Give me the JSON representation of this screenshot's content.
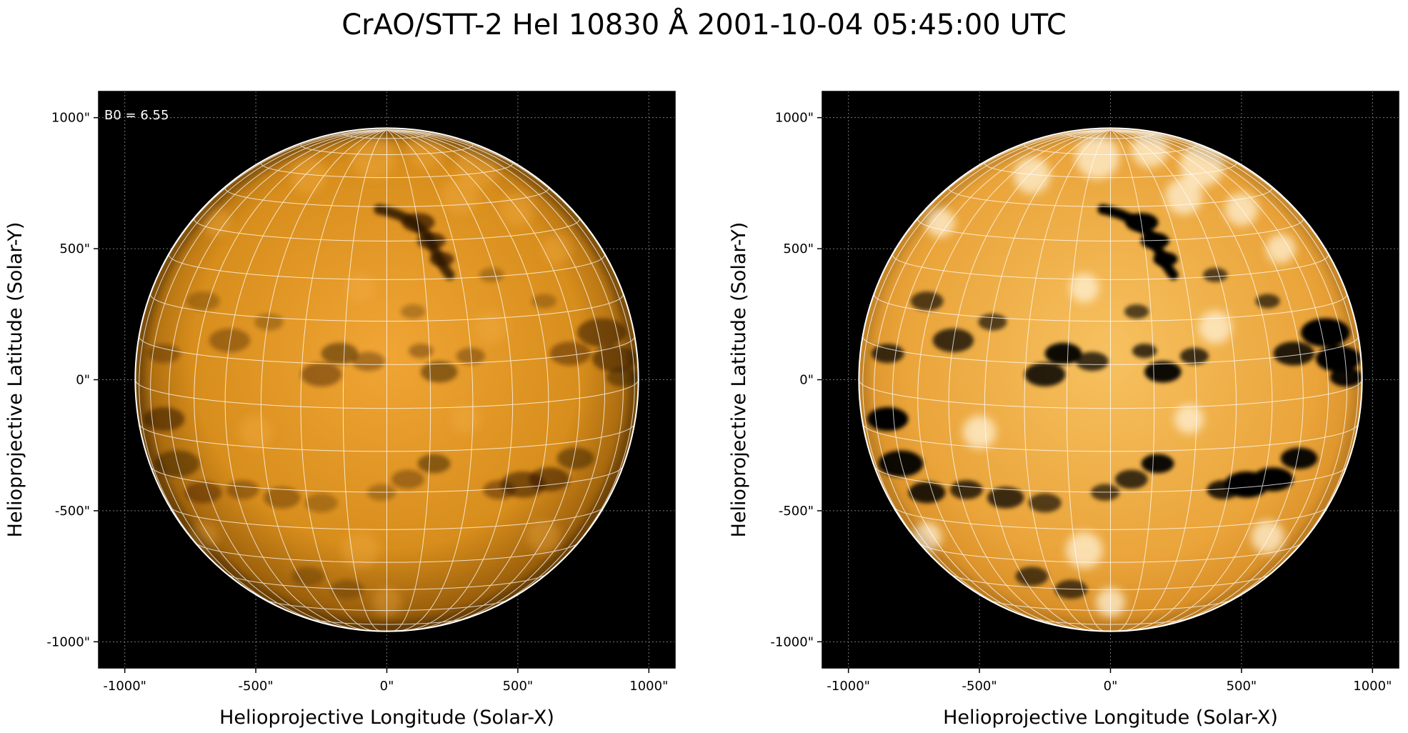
{
  "title": "CrAO/STT-2 HeI 10830 Å 2001-10-04 05:45:00 UTC",
  "colors": {
    "disk_dark": "#2a1500",
    "disk_mid": "#c87d10",
    "disk_bright": "#f2a630",
    "disk_white": "#fff4dc",
    "sky": "#000000",
    "grid": "#ffffff",
    "limb": "#ffffff",
    "feature": "#000000"
  },
  "panels": [
    {
      "name": "original",
      "annotation": "B0 = 6.55",
      "xlabel": "Helioprojective Longitude (Solar-X)",
      "ylabel": "Helioprojective Latitude (Solar-Y)",
      "x_ticks": [
        "-1000\"",
        "-500\"",
        "0\"",
        "500\"",
        "1000\""
      ],
      "y_ticks": [
        "1000\"",
        "500\"",
        "0\"",
        "-500\"",
        "-1000\""
      ],
      "x_tick_values": [
        -1000,
        -500,
        0,
        500,
        1000
      ],
      "y_tick_values": [
        1000,
        500,
        0,
        -500,
        -1000
      ],
      "xlim": [
        -1100,
        1100
      ],
      "ylim": [
        -1100,
        1100
      ],
      "solar_radius_arcsec": 960,
      "contrast": "normal"
    },
    {
      "name": "enhanced",
      "annotation": "",
      "xlabel": "Helioprojective Longitude (Solar-X)",
      "ylabel": "Helioprojective Latitude (Solar-Y)",
      "x_ticks": [
        "-1000\"",
        "-500\"",
        "0\"",
        "500\"",
        "1000\""
      ],
      "y_ticks": [
        "1000\"",
        "500\"",
        "0\"",
        "-500\"",
        "-1000\""
      ],
      "x_tick_values": [
        -1000,
        -500,
        0,
        500,
        1000
      ],
      "y_tick_values": [
        1000,
        500,
        0,
        -500,
        -1000
      ],
      "xlim": [
        -1100,
        1100
      ],
      "ylim": [
        -1100,
        1100
      ],
      "solar_radius_arcsec": 960,
      "contrast": "high"
    }
  ]
}
